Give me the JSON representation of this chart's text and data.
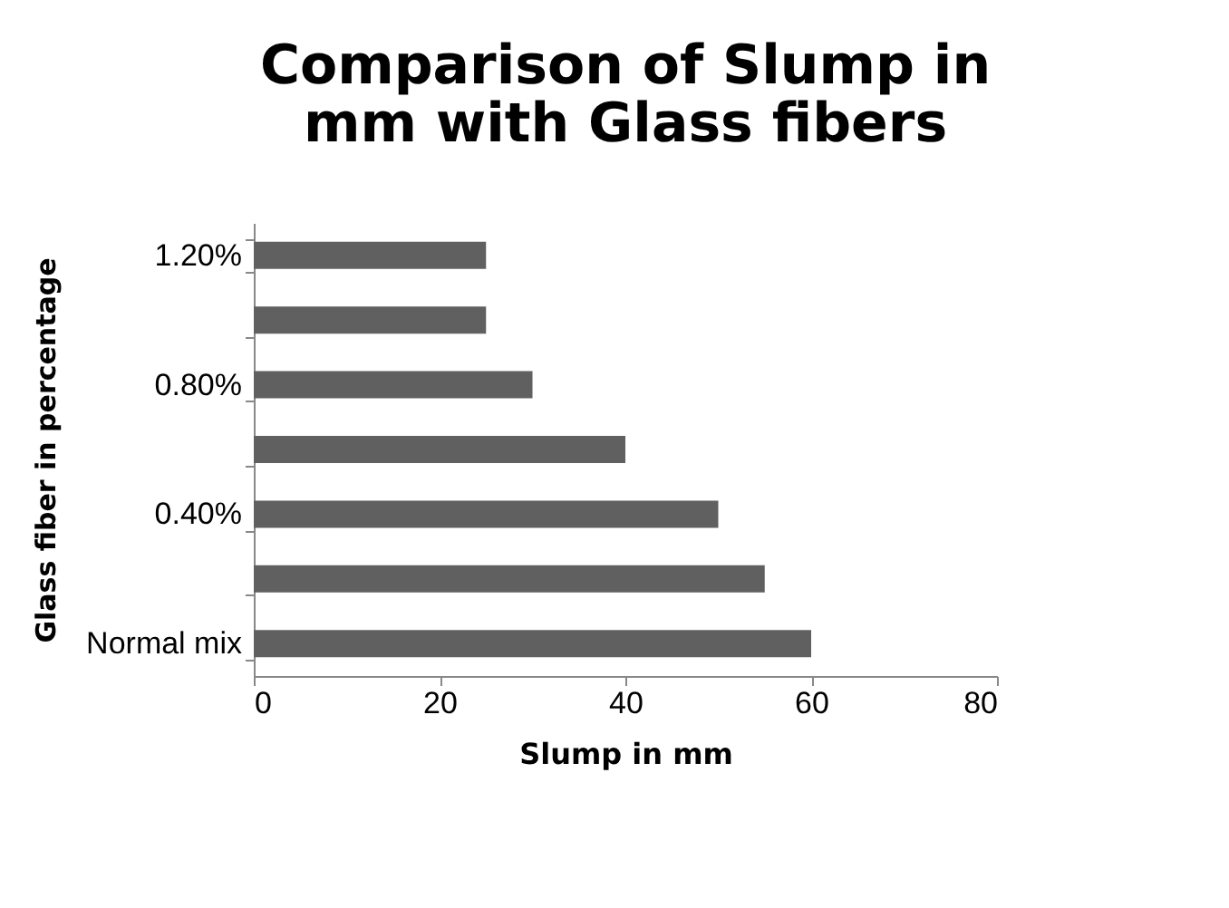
{
  "chart_data": {
    "type": "bar",
    "orientation": "horizontal",
    "title": "Comparison of Slump in mm with Glass fibers",
    "xlabel": "Slump in mm",
    "ylabel": "Glass fiber in percentage",
    "categories": [
      "1.20%",
      null,
      "0.80%",
      null,
      "0.40%",
      null,
      "Normal mix"
    ],
    "values": [
      25,
      25,
      30,
      40,
      50,
      55,
      60
    ],
    "color": "#606060",
    "xlim": [
      0,
      80
    ],
    "xticks": [
      0,
      20,
      40,
      60,
      80
    ],
    "grid": false
  }
}
